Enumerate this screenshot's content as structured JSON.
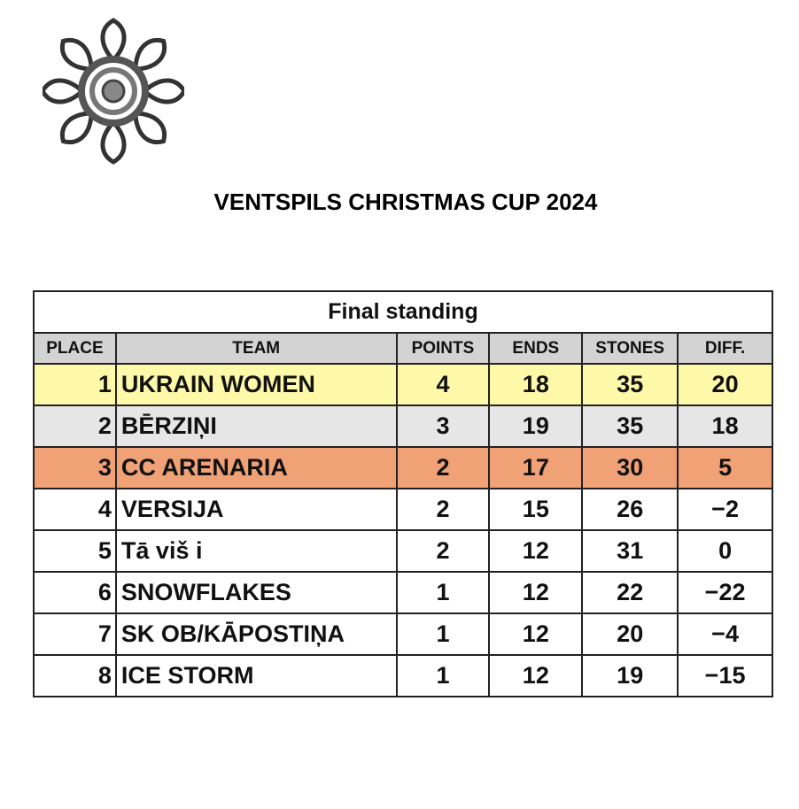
{
  "header": {
    "title": "VENTSPILS CHRISTMAS CUP 2024"
  },
  "table": {
    "caption": "Final standing",
    "columns": [
      "PLACE",
      "TEAM",
      "POINTS",
      "ENDS",
      "STONES",
      "DIFF."
    ],
    "rows": [
      [
        "1",
        "UKRAIN WOMEN",
        "4",
        "18",
        "35",
        "20"
      ],
      [
        "2",
        "BĒRZIŅI",
        "3",
        "19",
        "35",
        "18"
      ],
      [
        "3",
        "CC ARENARIA",
        "2",
        "17",
        "30",
        "5"
      ],
      [
        "4",
        "VERSIJA",
        "2",
        "15",
        "26",
        "−2"
      ],
      [
        "5",
        "Tā viš i",
        "2",
        "12",
        "31",
        "0"
      ],
      [
        "6",
        "SNOWFLAKES",
        "1",
        "12",
        "22",
        "−22"
      ],
      [
        "7",
        "SK OB/KĀPOSTIŅA",
        "1",
        "12",
        "20",
        "−4"
      ],
      [
        "8",
        "ICE STORM",
        "1",
        "12",
        "19",
        "−15"
      ]
    ]
  }
}
